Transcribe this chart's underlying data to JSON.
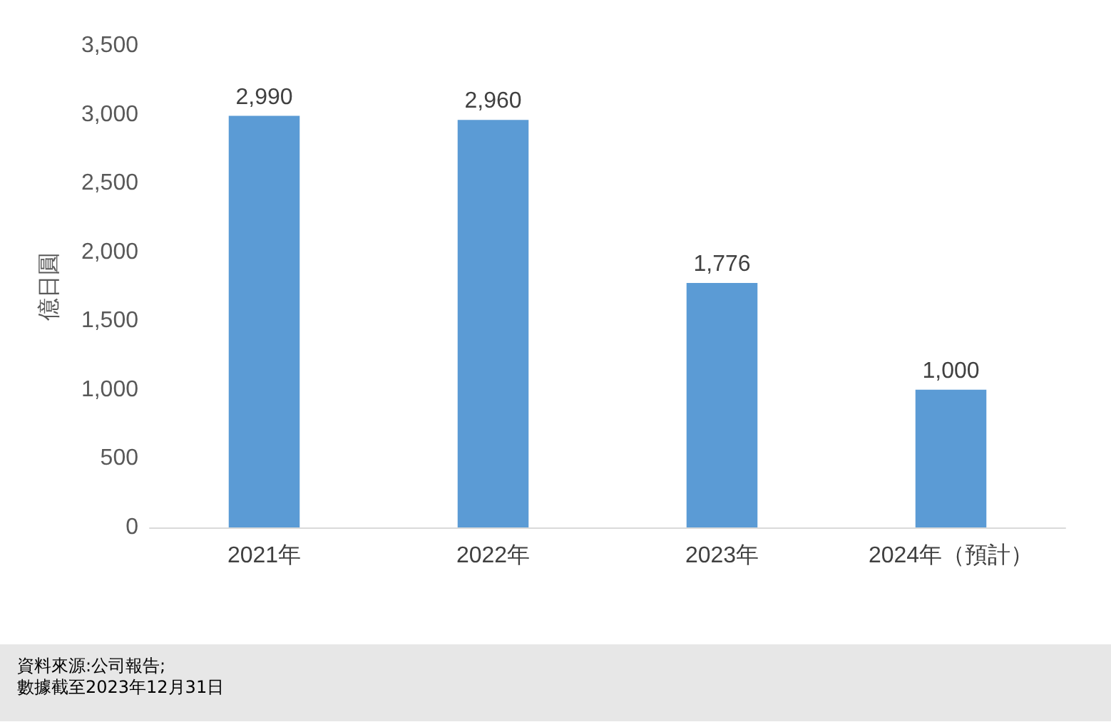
{
  "chart_data": {
    "type": "bar",
    "ylabel": "億日圓",
    "categories": [
      "2021年",
      "2022年",
      "2023年",
      "2024年（預計）"
    ],
    "series": [
      {
        "color": "#5b9bd5",
        "values": [
          2990,
          2960,
          1776,
          1000
        ],
        "value_labels": [
          "2,990",
          "2,960",
          "1,776",
          "1,000"
        ]
      }
    ],
    "ylim": [
      0,
      3500
    ],
    "yticks": [
      {
        "value": 0,
        "label": "0"
      },
      {
        "value": 500,
        "label": "500"
      },
      {
        "value": 1000,
        "label": "1,000"
      },
      {
        "value": 1500,
        "label": "1,500"
      },
      {
        "value": 2000,
        "label": "2,000"
      },
      {
        "value": 2500,
        "label": "2,500"
      },
      {
        "value": 3000,
        "label": "3,000"
      },
      {
        "value": 3500,
        "label": "3,500"
      }
    ],
    "grid": false,
    "annotations": [
      "資料來源:公司報告;",
      "數據截至2023年12月31日"
    ]
  }
}
